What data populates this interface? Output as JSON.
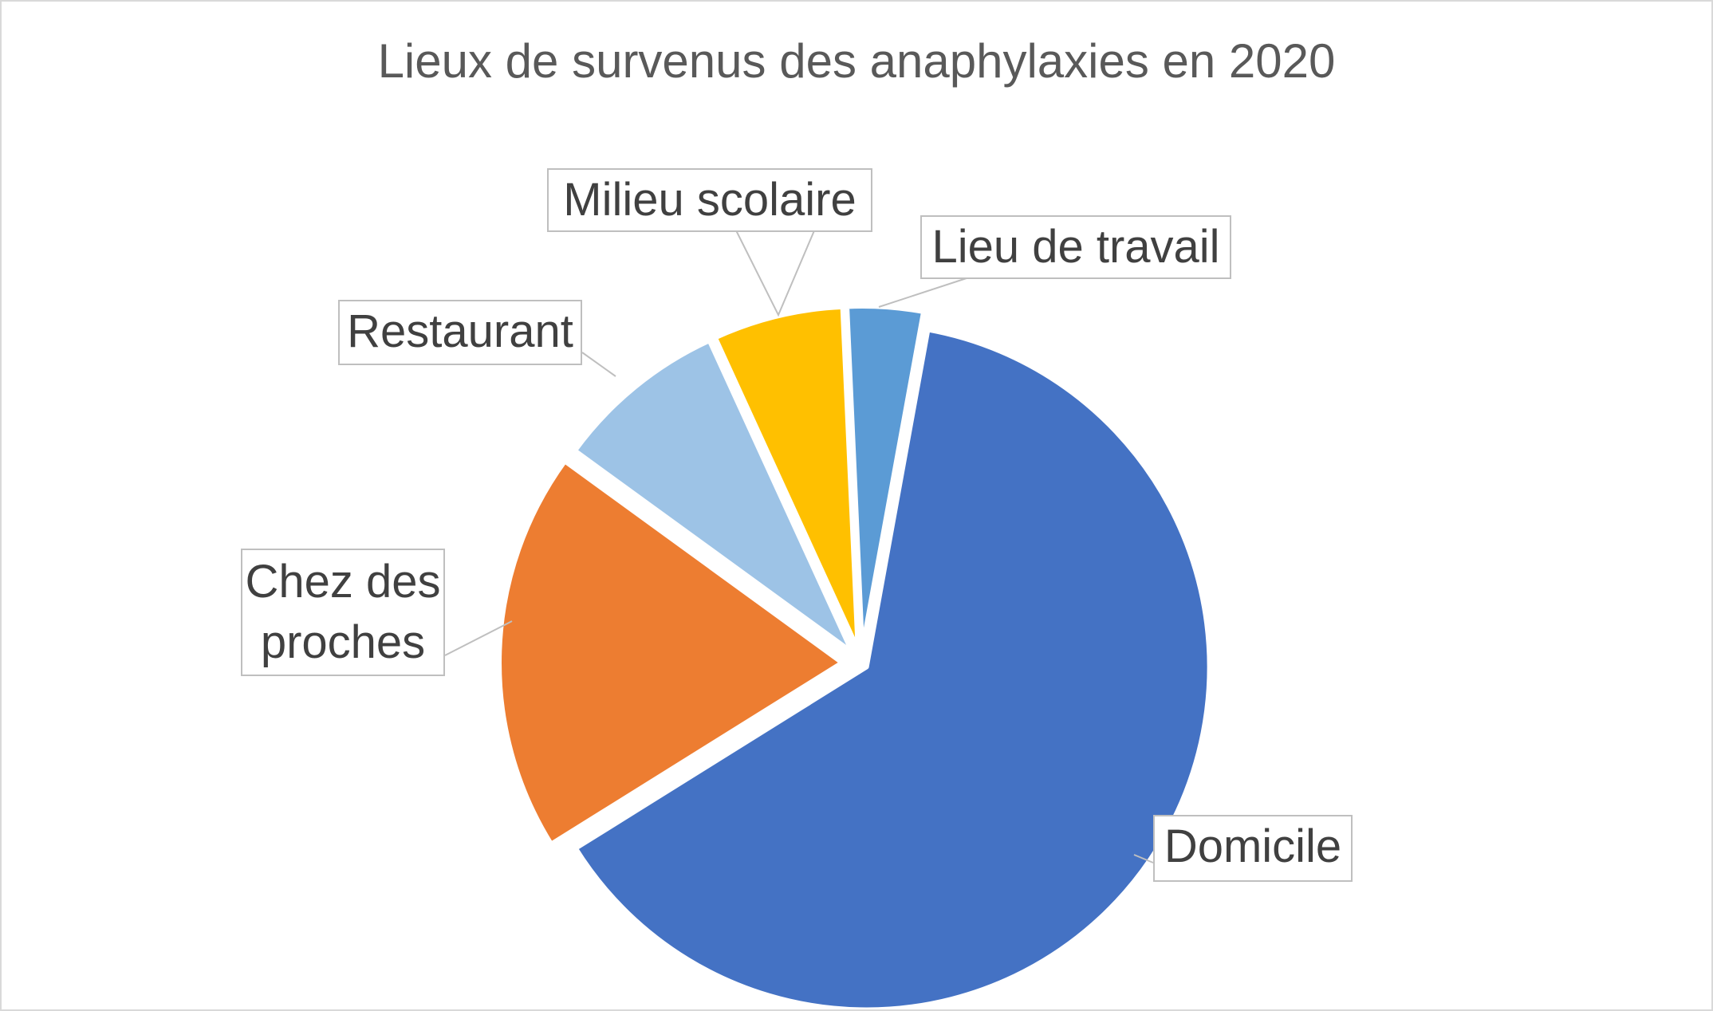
{
  "chart_data": {
    "type": "pie",
    "title": "Lieux de survenus des anaphylaxies en 2020",
    "categories": [
      "Domicile",
      "Chez des proches",
      "Restaurant",
      "Milieu scolaire",
      "Lieu de travail"
    ],
    "values": [
      62,
      18.5,
      8,
      6,
      3.5
    ],
    "colors": [
      "#4472C4",
      "#ED7D31",
      "#9DC3E6",
      "#FFC000",
      "#5B9BD5"
    ],
    "data_labels": "category-name callouts",
    "legend": "none"
  }
}
